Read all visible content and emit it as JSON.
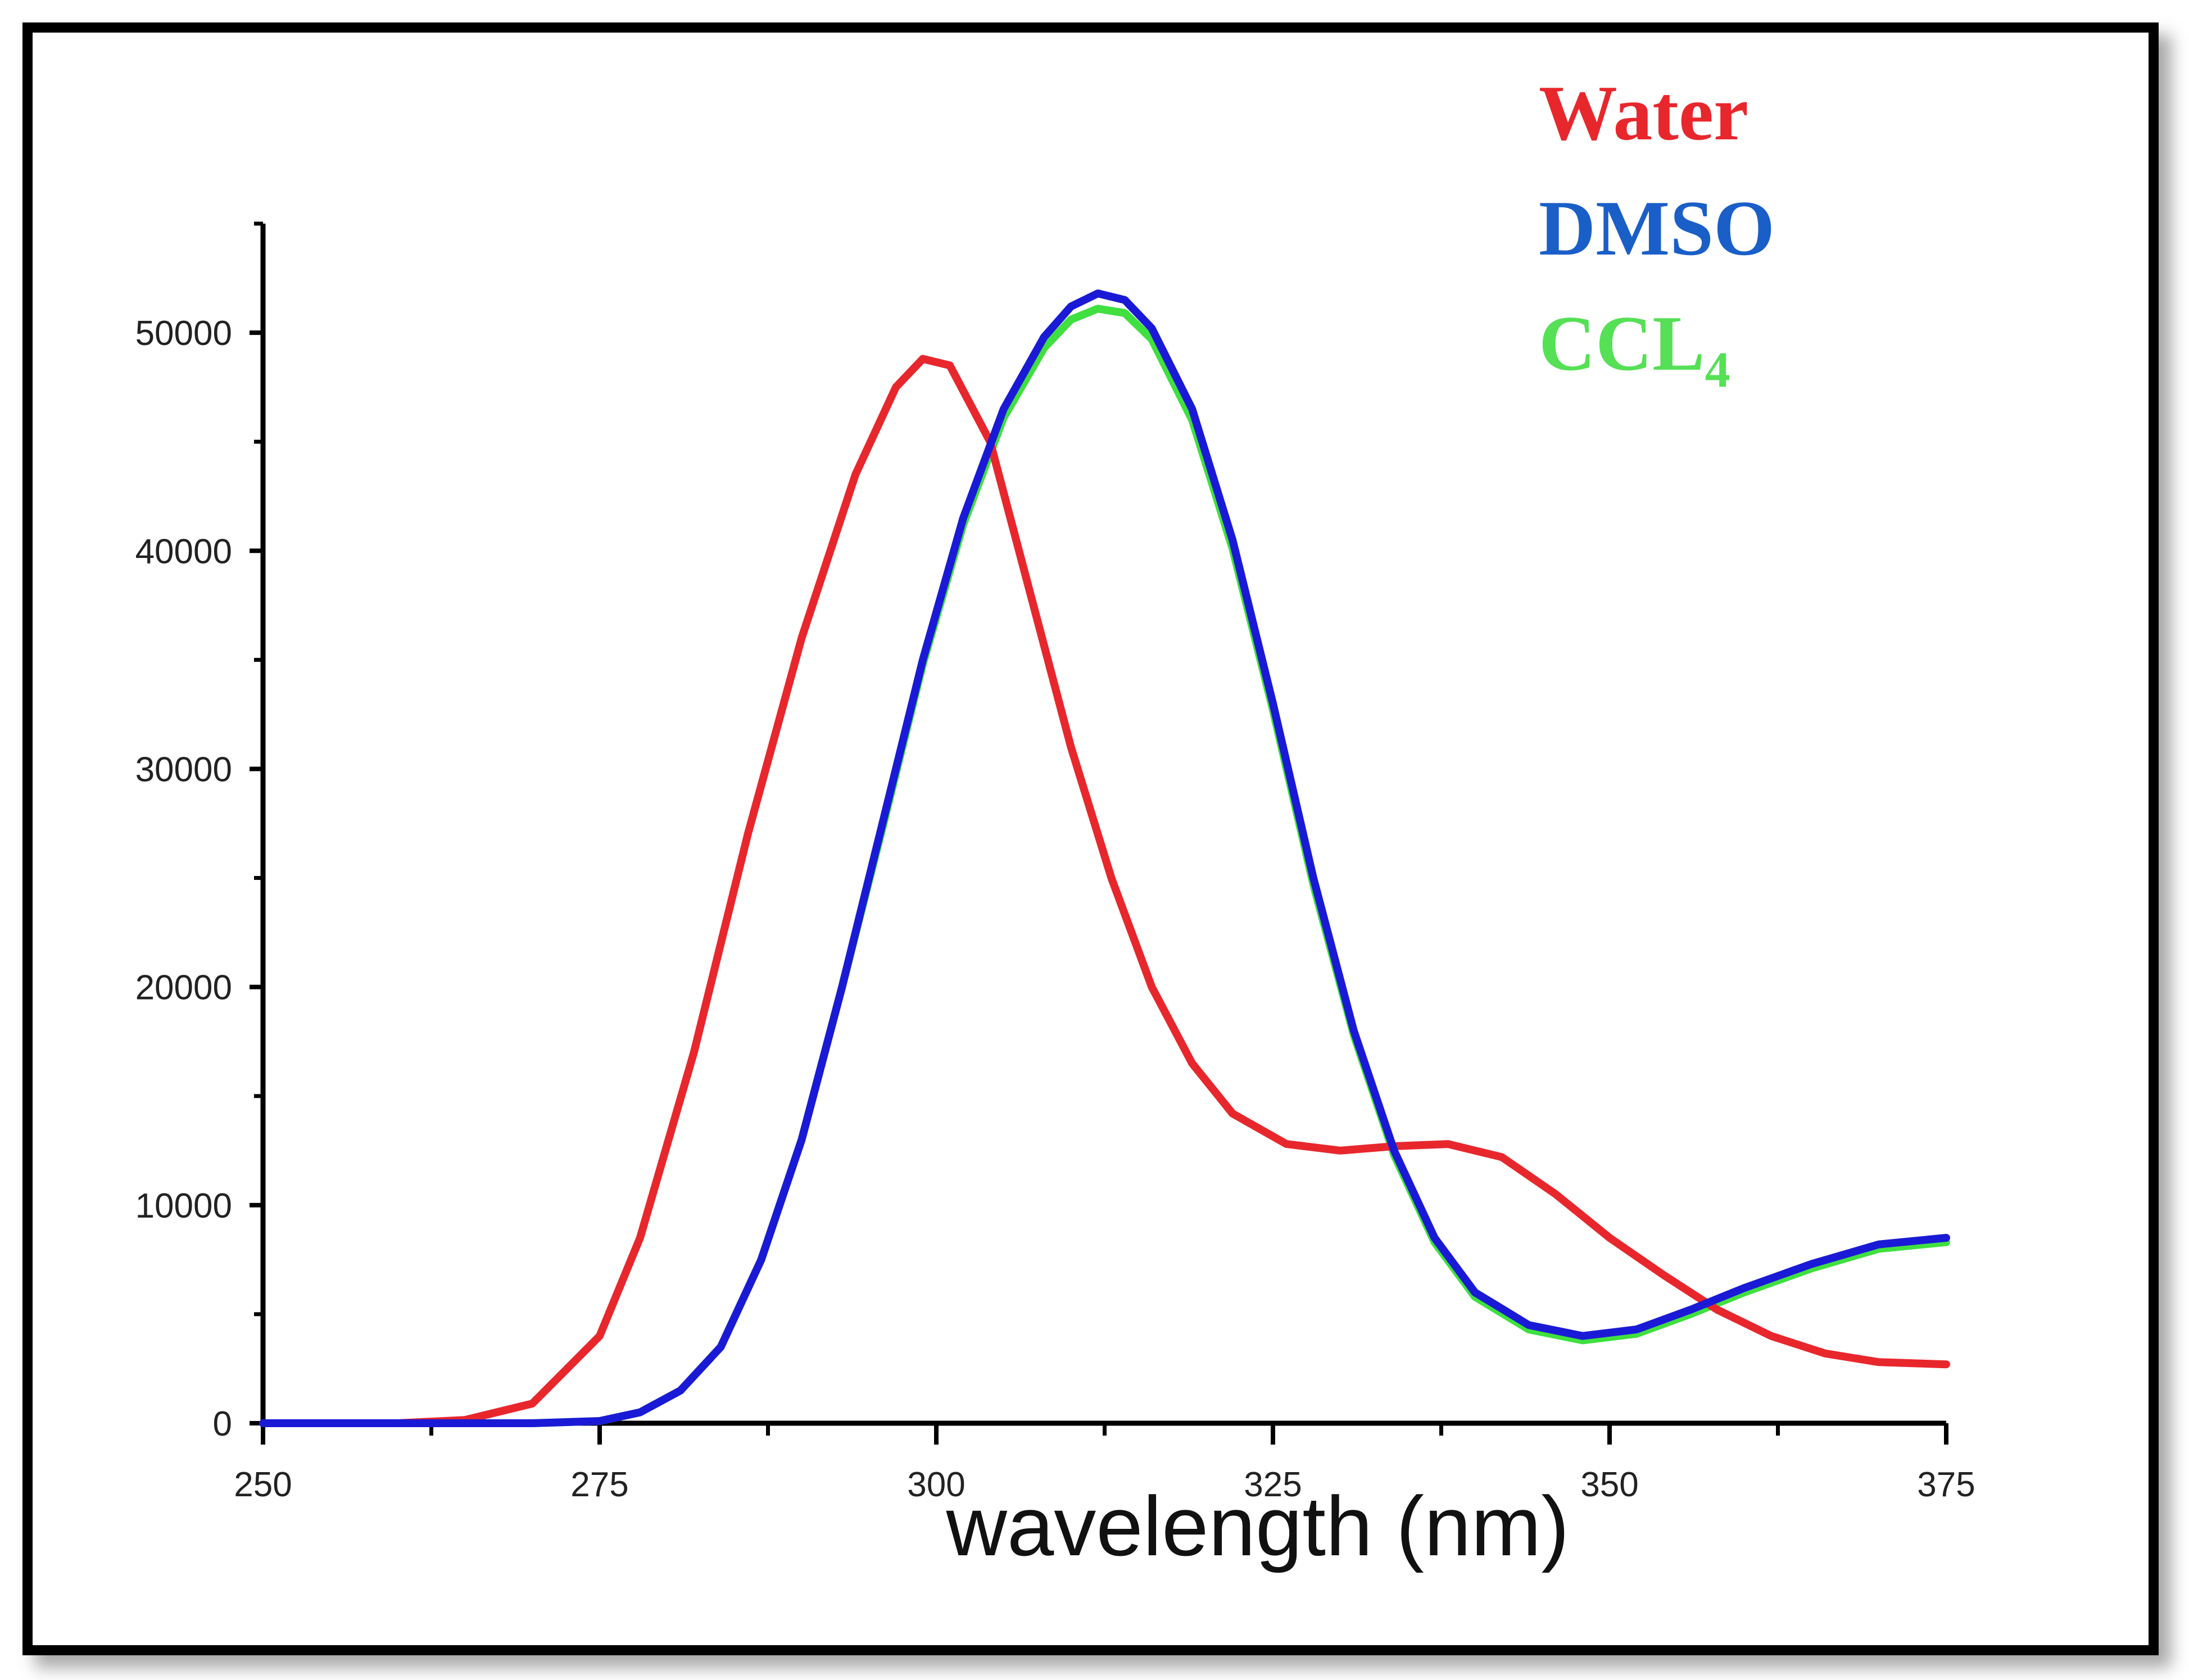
{
  "chart_data": {
    "type": "line",
    "xlabel": "wavelength (nm)",
    "ylabel": "",
    "xlim": [
      250,
      375
    ],
    "ylim": [
      0,
      55000
    ],
    "xticks": [
      250,
      275,
      300,
      325,
      350,
      375
    ],
    "yticks": [
      0,
      10000,
      20000,
      30000,
      40000,
      50000
    ],
    "grid": false,
    "legend_position": "top-right",
    "series": [
      {
        "name": "Water",
        "color": "#e8272d",
        "points": [
          [
            250,
            0
          ],
          [
            260,
            0
          ],
          [
            265,
            150
          ],
          [
            270,
            900
          ],
          [
            275,
            4000
          ],
          [
            278,
            8500
          ],
          [
            282,
            17000
          ],
          [
            286,
            27000
          ],
          [
            290,
            36000
          ],
          [
            294,
            43500
          ],
          [
            297,
            47500
          ],
          [
            299,
            48800
          ],
          [
            301,
            48500
          ],
          [
            304,
            45000
          ],
          [
            307,
            38000
          ],
          [
            310,
            31000
          ],
          [
            313,
            25000
          ],
          [
            316,
            20000
          ],
          [
            319,
            16500
          ],
          [
            322,
            14200
          ],
          [
            326,
            12800
          ],
          [
            330,
            12500
          ],
          [
            334,
            12700
          ],
          [
            338,
            12800
          ],
          [
            342,
            12200
          ],
          [
            346,
            10500
          ],
          [
            350,
            8500
          ],
          [
            354,
            6800
          ],
          [
            358,
            5200
          ],
          [
            362,
            4000
          ],
          [
            366,
            3200
          ],
          [
            370,
            2800
          ],
          [
            375,
            2700
          ]
        ]
      },
      {
        "name": "DMSO",
        "color": "#1a1ad6",
        "points": [
          [
            250,
            0
          ],
          [
            270,
            0
          ],
          [
            275,
            100
          ],
          [
            278,
            500
          ],
          [
            281,
            1500
          ],
          [
            284,
            3500
          ],
          [
            287,
            7500
          ],
          [
            290,
            13000
          ],
          [
            293,
            20000
          ],
          [
            296,
            27500
          ],
          [
            299,
            35000
          ],
          [
            302,
            41500
          ],
          [
            305,
            46500
          ],
          [
            308,
            49800
          ],
          [
            310,
            51200
          ],
          [
            312,
            51800
          ],
          [
            314,
            51500
          ],
          [
            316,
            50200
          ],
          [
            319,
            46500
          ],
          [
            322,
            40500
          ],
          [
            325,
            33000
          ],
          [
            328,
            25000
          ],
          [
            331,
            18000
          ],
          [
            334,
            12500
          ],
          [
            337,
            8500
          ],
          [
            340,
            6000
          ],
          [
            344,
            4500
          ],
          [
            348,
            4000
          ],
          [
            352,
            4300
          ],
          [
            356,
            5200
          ],
          [
            360,
            6200
          ],
          [
            365,
            7300
          ],
          [
            370,
            8200
          ],
          [
            375,
            8500
          ]
        ]
      },
      {
        "name": "CCL4",
        "color": "#3fe03f",
        "points": [
          [
            250,
            0
          ],
          [
            270,
            0
          ],
          [
            275,
            100
          ],
          [
            278,
            500
          ],
          [
            281,
            1500
          ],
          [
            284,
            3500
          ],
          [
            287,
            7500
          ],
          [
            290,
            13000
          ],
          [
            293,
            20000
          ],
          [
            296,
            27300
          ],
          [
            299,
            34800
          ],
          [
            302,
            41200
          ],
          [
            305,
            46100
          ],
          [
            308,
            49300
          ],
          [
            310,
            50600
          ],
          [
            312,
            51100
          ],
          [
            314,
            50900
          ],
          [
            316,
            49700
          ],
          [
            319,
            46000
          ],
          [
            322,
            40100
          ],
          [
            325,
            32700
          ],
          [
            328,
            24700
          ],
          [
            331,
            17800
          ],
          [
            334,
            12300
          ],
          [
            337,
            8300
          ],
          [
            340,
            5800
          ],
          [
            344,
            4300
          ],
          [
            348,
            3800
          ],
          [
            352,
            4100
          ],
          [
            356,
            5000
          ],
          [
            360,
            6000
          ],
          [
            365,
            7100
          ],
          [
            370,
            8000
          ],
          [
            375,
            8300
          ]
        ]
      }
    ],
    "legend": {
      "entries": [
        {
          "label": "Water",
          "color": "#e8272d"
        },
        {
          "label": "DMSO",
          "color": "#1a5fc8"
        },
        {
          "label": "CCL",
          "subscript": "4",
          "color": "#55e055"
        }
      ]
    }
  }
}
